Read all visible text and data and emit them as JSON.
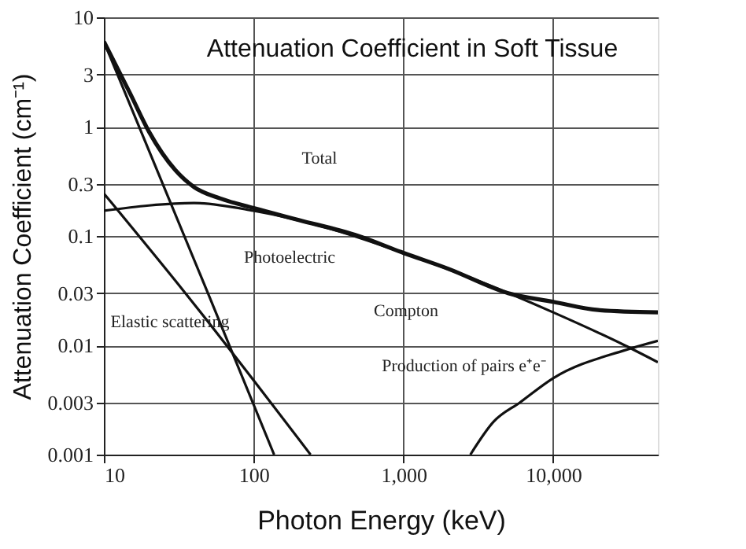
{
  "chart_data": {
    "type": "line",
    "title": "Attenuation Coefficient in Soft Tissue",
    "xlabel": "Photon Energy (keV)",
    "ylabel": "Attenuation Coefficient (cm⁻¹)",
    "log": "xy",
    "grid": true,
    "marker": "none",
    "line_style": "solid",
    "xlim": [
      10,
      50000
    ],
    "ylim": [
      0.001,
      10
    ],
    "xticks": [
      10,
      100,
      {
        "value": 1000,
        "label": "1,000"
      },
      {
        "value": 10000,
        "label": "10,000"
      }
    ],
    "yticks": [
      0.001,
      0.003,
      0.01,
      0.03,
      0.1,
      0.3,
      1,
      3,
      10
    ],
    "series": [
      {
        "color": "#111111",
        "x": [
          10,
          15,
          20,
          30,
          40,
          60,
          100,
          200,
          500,
          1000,
          2000,
          5000,
          10000,
          20000,
          50000
        ],
        "values": [
          6,
          2,
          0.9,
          0.4,
          0.28,
          0.22,
          0.18,
          0.14,
          0.1,
          0.07,
          0.05,
          0.03,
          0.025,
          0.021,
          0.02
        ]
      },
      {
        "color": "#111111",
        "x": [
          10,
          20,
          40,
          100,
          300,
          1000,
          3000,
          10000,
          30000,
          50000
        ],
        "values": [
          0.17,
          0.19,
          0.2,
          0.17,
          0.12,
          0.07,
          0.04,
          0.02,
          0.01,
          0.007
        ]
      },
      {
        "color": "#111111",
        "x": [
          10,
          50,
          137
        ],
        "values": [
          6,
          0.029,
          0.001
        ]
      },
      {
        "color": "#111111",
        "x": [
          10,
          35,
          240
        ],
        "values": [
          0.245,
          0.03,
          0.001
        ]
      },
      {
        "color": "#111111",
        "x": [
          2800,
          4000,
          6000,
          10000,
          30000,
          50000
        ],
        "values": [
          0.001,
          0.002,
          0.003,
          0.005,
          0.009,
          0.011
        ]
      }
    ],
    "annotations": [
      "Total",
      "Photoelectric",
      "Compton",
      "Elastic scattering",
      "Production of pairs e⁺e⁻"
    ]
  }
}
